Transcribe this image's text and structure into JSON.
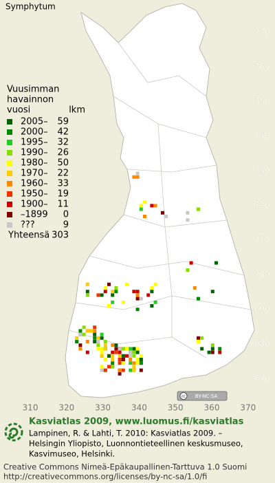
{
  "title": "Symphytum",
  "grid": {
    "north": [
      770,
      760,
      750,
      740,
      730,
      720,
      710,
      700,
      690,
      680,
      670
    ],
    "east": [
      310,
      320,
      330,
      340,
      350,
      360,
      370
    ]
  },
  "legend": {
    "heading": [
      "Vuusimman",
      "havainnon",
      "vuosi"
    ],
    "count_header": "lkm",
    "rows": [
      {
        "label": "2005–",
        "count": "59",
        "color": "#006400"
      },
      {
        "label": "2000–",
        "count": "42",
        "color": "#008a00"
      },
      {
        "label": "1995–",
        "count": "32",
        "color": "#22cc22"
      },
      {
        "label": "1990–",
        "count": "26",
        "color": "#88dd00"
      },
      {
        "label": "1980–",
        "count": "50",
        "color": "#ffff00"
      },
      {
        "label": "1970–",
        "count": "22",
        "color": "#ffcc00"
      },
      {
        "label": "1960–",
        "count": "33",
        "color": "#ff8800"
      },
      {
        "label": "1950–",
        "count": "19",
        "color": "#ee3300"
      },
      {
        "label": "1900–",
        "count": "11",
        "color": "#cc0000"
      },
      {
        "label": "–1899",
        "count": "0",
        "color": "#800000"
      },
      {
        "label": "???",
        "count": "9",
        "color": "#c8c8c8"
      }
    ],
    "total_label": "Yhteensä",
    "total": "303"
  },
  "badge": "BY-NC-SA",
  "footer": {
    "heading": "Kasviatlas 2009, www.luomus.fi/kasviatlas",
    "lines": [
      "Lampinen, R. & Lahti, T. 2010: Kasviatlas 2009. –",
      "Helsingin Yliopisto, Luonnontieteellinen keskusmuseo,",
      "Kasvimuseo, Helsinki."
    ],
    "license": [
      "Creative Commons Nimeä-Epäkaupallinen-Tarttuva 1.0 Suomi",
      "http://creativecommons.org/licenses/by-nc-sa/1.0/fi"
    ]
  }
}
